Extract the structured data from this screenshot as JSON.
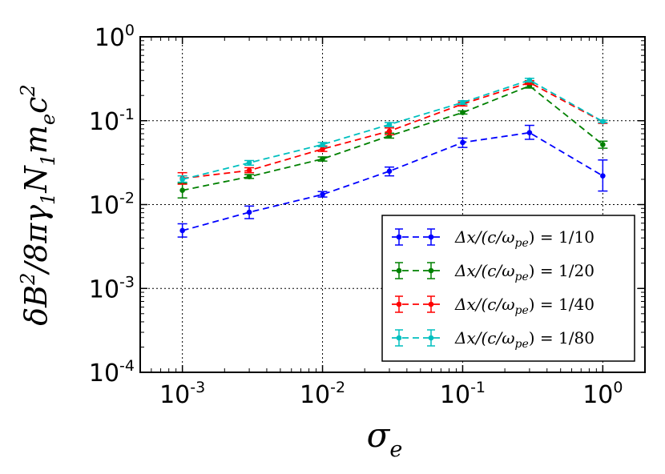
{
  "chart_data": {
    "type": "line",
    "x_scale": "log",
    "y_scale": "log",
    "xlim": [
      0.0005,
      2.0
    ],
    "ylim": [
      0.0001,
      1.0
    ],
    "grid": true,
    "xlabel": "σ_e",
    "ylabel": "δB²/8πγ₁N₁m_ec²",
    "x_ticks": [
      {
        "value": 0.001,
        "base": "10",
        "exp": "-3"
      },
      {
        "value": 0.01,
        "base": "10",
        "exp": "-2"
      },
      {
        "value": 0.1,
        "base": "10",
        "exp": "-1"
      },
      {
        "value": 1,
        "base": "10",
        "exp": "0"
      }
    ],
    "y_ticks": [
      {
        "value": 0.0001,
        "base": "10",
        "exp": "-4"
      },
      {
        "value": 0.001,
        "base": "10",
        "exp": "-3"
      },
      {
        "value": 0.01,
        "base": "10",
        "exp": "-2"
      },
      {
        "value": 0.1,
        "base": "10",
        "exp": "-1"
      },
      {
        "value": 1,
        "base": "10",
        "exp": "0"
      }
    ],
    "x": [
      0.001,
      0.003,
      0.01,
      0.03,
      0.1,
      0.3,
      1.0
    ],
    "legend_position": "lower-right",
    "series": [
      {
        "name": "Δx/(c/ω_pe) = 1/10",
        "legend_text": "Δx/(c/ωpe) = 1/10",
        "color": "#0000ff",
        "values": [
          0.0049,
          0.0081,
          0.0132,
          0.025,
          0.055,
          0.072,
          0.022
        ],
        "err_low": [
          0.0041,
          0.0068,
          0.0123,
          0.022,
          0.048,
          0.06,
          0.0145
        ],
        "err_high": [
          0.0059,
          0.0096,
          0.0143,
          0.028,
          0.062,
          0.088,
          0.034
        ]
      },
      {
        "name": "Δx/(c/ω_pe) = 1/20",
        "legend_text": "Δx/(c/ωpe) = 1/20",
        "color": "#008000",
        "values": [
          0.0148,
          0.0215,
          0.035,
          0.066,
          0.125,
          0.26,
          0.052
        ],
        "err_low": [
          0.012,
          0.0205,
          0.033,
          0.062,
          0.12,
          0.245,
          0.047
        ],
        "err_high": [
          0.018,
          0.0228,
          0.037,
          0.071,
          0.131,
          0.28,
          0.057
        ]
      },
      {
        "name": "Δx/(c/ω_pe) = 1/40",
        "legend_text": "Δx/(c/ωpe) = 1/40",
        "color": "#ff0000",
        "values": [
          0.0205,
          0.0255,
          0.046,
          0.075,
          0.158,
          0.285,
          0.097
        ],
        "err_low": [
          0.0175,
          0.024,
          0.043,
          0.068,
          0.15,
          0.27,
          0.093
        ],
        "err_high": [
          0.024,
          0.0275,
          0.05,
          0.082,
          0.166,
          0.3,
          0.101
        ]
      },
      {
        "name": "Δx/(c/ω_pe) = 1/80",
        "legend_text": "Δx/(c/ωpe) = 1/80",
        "color": "#00bfbf",
        "values": [
          0.02,
          0.0315,
          0.052,
          0.09,
          0.165,
          0.305,
          0.098
        ],
        "err_low": [
          0.0185,
          0.0295,
          0.049,
          0.085,
          0.157,
          0.29,
          0.095
        ],
        "err_high": [
          0.022,
          0.0335,
          0.055,
          0.095,
          0.173,
          0.32,
          0.101
        ]
      }
    ]
  }
}
